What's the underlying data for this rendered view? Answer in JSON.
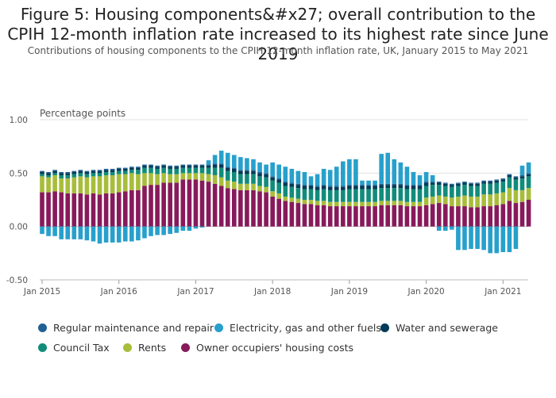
{
  "title": "Figure 5: Housing components&#x27; overall contribution to the CPIH 12-month inflation rate increased to its highest rate since June 2019",
  "subtitle": "Contributions of housing components to the CPIH 12-month inflation rate, UK, January 2015 to May 2021",
  "colors": {
    "Regular maintenance and repair": "#206095",
    "Electricity, gas and other fuels": "#27a0cc",
    "Water and sewerage": "#003c57",
    "Council Tax": "#118c7b",
    "Rents": "#a8bd3a",
    "Owner occupiers' housing costs": "#871a5b"
  },
  "chart_data": {
    "type": "bar",
    "stacked": true,
    "ylabel": "Percentage points",
    "ylim": [
      -0.5,
      1.0
    ],
    "yticks": [
      "1.00",
      "0.50",
      "0.00",
      "-0.50"
    ],
    "xticks": [
      "Jan 2015",
      "Jan 2016",
      "Jan 2017",
      "Jan 2018",
      "Jan 2019",
      "Jan 2020",
      "Jan 2021"
    ],
    "grid": true,
    "legend_position": "bottom",
    "categories": [
      "Jan 2015",
      "Feb 2015",
      "Mar 2015",
      "Apr 2015",
      "May 2015",
      "Jun 2015",
      "Jul 2015",
      "Aug 2015",
      "Sep 2015",
      "Oct 2015",
      "Nov 2015",
      "Dec 2015",
      "Jan 2016",
      "Feb 2016",
      "Mar 2016",
      "Apr 2016",
      "May 2016",
      "Jun 2016",
      "Jul 2016",
      "Aug 2016",
      "Sep 2016",
      "Oct 2016",
      "Nov 2016",
      "Dec 2016",
      "Jan 2017",
      "Feb 2017",
      "Mar 2017",
      "Apr 2017",
      "May 2017",
      "Jun 2017",
      "Jul 2017",
      "Aug 2017",
      "Sep 2017",
      "Oct 2017",
      "Nov 2017",
      "Dec 2017",
      "Jan 2018",
      "Feb 2018",
      "Mar 2018",
      "Apr 2018",
      "May 2018",
      "Jun 2018",
      "Jul 2018",
      "Aug 2018",
      "Sep 2018",
      "Oct 2018",
      "Nov 2018",
      "Dec 2018",
      "Jan 2019",
      "Feb 2019",
      "Mar 2019",
      "Apr 2019",
      "May 2019",
      "Jun 2019",
      "Jul 2019",
      "Aug 2019",
      "Sep 2019",
      "Oct 2019",
      "Nov 2019",
      "Dec 2019",
      "Jan 2020",
      "Feb 2020",
      "Mar 2020",
      "Apr 2020",
      "May 2020",
      "Jun 2020",
      "Jul 2020",
      "Aug 2020",
      "Sep 2020",
      "Oct 2020",
      "Nov 2020",
      "Dec 2020",
      "Jan 2021",
      "Feb 2021",
      "Mar 2021",
      "Apr 2021",
      "May 2021"
    ],
    "series": [
      {
        "name": "Owner occupiers' housing costs",
        "values": [
          0.32,
          0.32,
          0.33,
          0.32,
          0.31,
          0.31,
          0.31,
          0.3,
          0.31,
          0.3,
          0.31,
          0.31,
          0.32,
          0.33,
          0.34,
          0.34,
          0.38,
          0.39,
          0.39,
          0.41,
          0.41,
          0.41,
          0.44,
          0.44,
          0.44,
          0.43,
          0.42,
          0.4,
          0.38,
          0.36,
          0.35,
          0.34,
          0.34,
          0.34,
          0.33,
          0.32,
          0.28,
          0.26,
          0.24,
          0.23,
          0.22,
          0.21,
          0.21,
          0.2,
          0.2,
          0.19,
          0.19,
          0.19,
          0.19,
          0.19,
          0.19,
          0.19,
          0.19,
          0.2,
          0.2,
          0.2,
          0.2,
          0.19,
          0.19,
          0.19,
          0.2,
          0.21,
          0.22,
          0.21,
          0.19,
          0.19,
          0.19,
          0.18,
          0.18,
          0.19,
          0.19,
          0.2,
          0.21,
          0.24,
          0.22,
          0.23,
          0.25
        ]
      },
      {
        "name": "Rents",
        "values": [
          0.15,
          0.14,
          0.15,
          0.13,
          0.14,
          0.15,
          0.16,
          0.16,
          0.16,
          0.17,
          0.17,
          0.17,
          0.17,
          0.16,
          0.16,
          0.15,
          0.12,
          0.11,
          0.1,
          0.09,
          0.08,
          0.08,
          0.06,
          0.06,
          0.06,
          0.07,
          0.07,
          0.08,
          0.08,
          0.07,
          0.07,
          0.06,
          0.06,
          0.06,
          0.05,
          0.05,
          0.05,
          0.05,
          0.04,
          0.04,
          0.04,
          0.04,
          0.04,
          0.04,
          0.04,
          0.04,
          0.04,
          0.04,
          0.04,
          0.04,
          0.04,
          0.04,
          0.04,
          0.04,
          0.04,
          0.04,
          0.04,
          0.04,
          0.04,
          0.04,
          0.07,
          0.07,
          0.07,
          0.07,
          0.08,
          0.09,
          0.1,
          0.1,
          0.1,
          0.11,
          0.11,
          0.11,
          0.11,
          0.12,
          0.12,
          0.11,
          0.11
        ]
      },
      {
        "name": "Council Tax",
        "values": [
          0.02,
          0.02,
          0.02,
          0.03,
          0.03,
          0.03,
          0.03,
          0.03,
          0.03,
          0.03,
          0.03,
          0.03,
          0.03,
          0.03,
          0.03,
          0.04,
          0.05,
          0.05,
          0.05,
          0.05,
          0.05,
          0.05,
          0.05,
          0.05,
          0.05,
          0.05,
          0.06,
          0.07,
          0.09,
          0.09,
          0.09,
          0.09,
          0.09,
          0.09,
          0.09,
          0.09,
          0.1,
          0.1,
          0.1,
          0.1,
          0.1,
          0.1,
          0.1,
          0.1,
          0.11,
          0.11,
          0.11,
          0.11,
          0.12,
          0.12,
          0.12,
          0.12,
          0.12,
          0.12,
          0.12,
          0.12,
          0.12,
          0.12,
          0.12,
          0.12,
          0.11,
          0.11,
          0.1,
          0.1,
          0.1,
          0.1,
          0.1,
          0.1,
          0.1,
          0.1,
          0.1,
          0.1,
          0.1,
          0.1,
          0.1,
          0.11,
          0.11
        ]
      },
      {
        "name": "Water and sewerage",
        "values": [
          0.02,
          0.02,
          0.02,
          0.02,
          0.02,
          0.02,
          0.02,
          0.02,
          0.02,
          0.02,
          0.02,
          0.02,
          0.02,
          0.02,
          0.02,
          0.02,
          0.02,
          0.02,
          0.02,
          0.02,
          0.02,
          0.02,
          0.02,
          0.02,
          0.02,
          0.02,
          0.02,
          0.03,
          0.03,
          0.03,
          0.03,
          0.03,
          0.03,
          0.03,
          0.03,
          0.03,
          0.03,
          0.03,
          0.03,
          0.03,
          0.03,
          0.03,
          0.03,
          0.03,
          0.03,
          0.03,
          0.03,
          0.03,
          0.03,
          0.03,
          0.03,
          0.03,
          0.03,
          0.03,
          0.03,
          0.03,
          0.03,
          0.03,
          0.03,
          0.03,
          0.03,
          0.02,
          0.02,
          0.02,
          0.02,
          0.02,
          0.02,
          0.02,
          0.02,
          0.02,
          0.02,
          0.02,
          0.02,
          0.02,
          0.02,
          0.02,
          0.02
        ]
      },
      {
        "name": "Regular maintenance and repair",
        "values": [
          0.01,
          0.01,
          0.01,
          0.01,
          0.01,
          0.01,
          0.01,
          0.01,
          0.01,
          0.01,
          0.01,
          0.01,
          0.01,
          0.01,
          0.01,
          0.01,
          0.01,
          0.01,
          0.01,
          0.01,
          0.01,
          0.01,
          0.01,
          0.01,
          0.01,
          0.01,
          0.01,
          0.01,
          0.01,
          0.01,
          0.01,
          0.01,
          0.01,
          0.01,
          0.01,
          0.01,
          0.01,
          0.01,
          0.01,
          0.01,
          0.01,
          0.01,
          0.01,
          0.01,
          0.01,
          0.01,
          0.01,
          0.01,
          0.01,
          0.01,
          0.01,
          0.01,
          0.01,
          0.01,
          0.01,
          0.01,
          0.01,
          0.01,
          0.01,
          0.01,
          0.01,
          0.01,
          0.01,
          0.01,
          0.01,
          0.01,
          0.01,
          0.01,
          0.01,
          0.01,
          0.01,
          0.01,
          0.01,
          0.01,
          0.01,
          0.01,
          0.01
        ]
      },
      {
        "name": "Electricity, gas and other fuels",
        "values": [
          -0.07,
          -0.09,
          -0.09,
          -0.12,
          -0.12,
          -0.12,
          -0.12,
          -0.13,
          -0.14,
          -0.16,
          -0.15,
          -0.15,
          -0.15,
          -0.14,
          -0.14,
          -0.13,
          -0.11,
          -0.09,
          -0.08,
          -0.08,
          -0.07,
          -0.06,
          -0.04,
          -0.04,
          -0.02,
          -0.01,
          0.04,
          0.08,
          0.12,
          0.13,
          0.12,
          0.12,
          0.11,
          0.1,
          0.09,
          0.08,
          0.13,
          0.13,
          0.14,
          0.13,
          0.12,
          0.12,
          0.08,
          0.11,
          0.15,
          0.15,
          0.18,
          0.23,
          0.24,
          0.24,
          0.04,
          0.04,
          0.04,
          0.28,
          0.29,
          0.23,
          0.2,
          0.17,
          0.12,
          0.09,
          0.09,
          0.06,
          -0.04,
          -0.04,
          -0.03,
          -0.22,
          -0.22,
          -0.21,
          -0.21,
          -0.22,
          -0.25,
          -0.25,
          -0.24,
          -0.24,
          -0.21,
          0.09,
          0.1
        ]
      }
    ]
  },
  "legend": [
    {
      "label": "Regular maintenance and repair",
      "color": "#206095"
    },
    {
      "label": "Electricity, gas and other fuels",
      "color": "#27a0cc"
    },
    {
      "label": "Water and sewerage",
      "color": "#003c57"
    },
    {
      "label": "Council Tax",
      "color": "#118c7b"
    },
    {
      "label": "Rents",
      "color": "#a8bd3a"
    },
    {
      "label": "Owner occupiers' housing costs",
      "color": "#871a5b"
    }
  ]
}
